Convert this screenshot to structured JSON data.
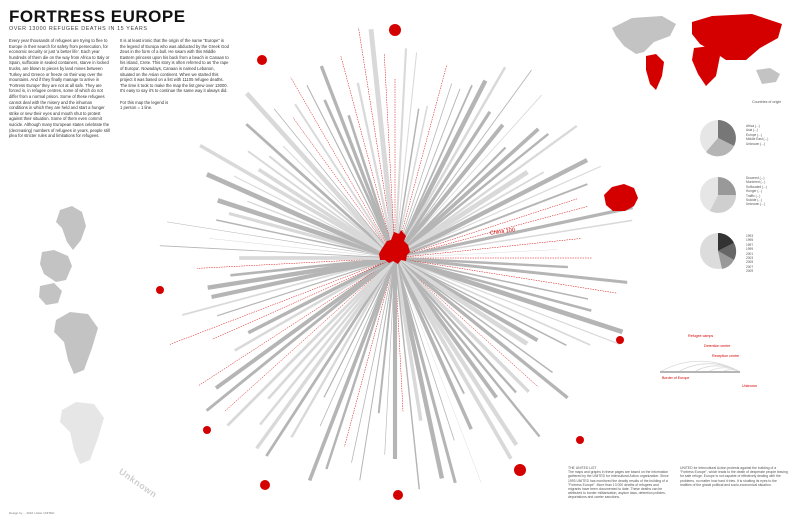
{
  "title": "FORTRESS EUROPE",
  "subtitle": "OVER 13000 REFUGEE DEATHS IN 15 YEARS",
  "intro_col1": "Every year thousands of refugees are trying to flee to Europe in their search for safety from persecution, for economic security or just 'a better life'. Each year hundreds of them die on the way from Africa to Italy or Spain, suffocate in sealed containers, starve in locked trucks, are blown to pieces by land mines between Turkey and Greece or freeze on their way over the mountains. And if they finally manage to arrive in 'Fortress Europe' they are not at all safe. They are forced in, in refugee centres, some of which do not differ from a normal prison. Some of these refugees cannot deal with the misery and the inhuman conditions in which they are held and start a hunger strike or sew their eyes and mouth shut to protest against their situation. Some of them even commit suicide. Although many European states celebrate the (decreasing) numbers of refugees in years, people still plea for stricter rules and limitations for refugees.",
  "intro_col2": "It is at least ironic that the origin of the name \"Europe\" is the legend of Europa who was abducted by the Greek God Zeus in the form of a bull. He swam with this Middle Eastern princess upon his back from a beach in Canaan to his island, Crete. This story is often referred to as 'the rape of Europa'. Nowadays, Canaan is named Lebanon, situated on the Asian continent. When we started this project it was based on a list with 11105 refugee deaths. The time it took to make the map the list grew over 13000. It's easy to say it's to continue the same way it always did.\n\nFor this map the legend is\n1 person = 1 line.",
  "world_caption": "Countries of origin",
  "pie_legends": [
    "Africa (...)\nAsia (...)\nEurope (...)\nMiddle East (...)\nUnknown (...)",
    "Drowned (...)\nMurdered (...)\nSuffocated (...)\nHunger (...)\nTraffic (...)\nSuicide (...)\nUnknown (...)",
    "1993\n1995\n1997\n1999\n2001\n2003\n2005\n2007\n2009"
  ],
  "arc_labels": [
    "Border of Europe",
    "Refugee camps",
    "Detention centre",
    "Reception centre",
    "Unknown"
  ],
  "china_label": "China  100",
  "unknown_label": "Unknown",
  "footer_left": "THE UNITED LIST\nThe maps and graphs in these pages are based on the information gathered by the UNITED for Intercultural Action organization. Since 1993 UNITED has monitored the deadly results of the building of a \"Fortress Europe\". More than 13 000 deaths of refugees and migrants have been documented to date. These deaths can be attributed to border militarisation, asylum laws, detention policies, deportations and carrier sanctions.",
  "footer_right": "UNITED for Intercultural Action protests against the building of a \"Fortress Europe\", which leads to the death of desperate people leaving for safe refuge. Europe is not capable of effectively dealing with the problems, no matter how hard it tries. It is shutting its eyes to the realities of the global political and socio-economical situation.",
  "credit": "Design by ... 2010 / data: UNITED",
  "colors": {
    "accent": "#d40000",
    "ray_dark": "#b5b5b5",
    "ray_light": "#d9d9d9",
    "map_grey": "#c3c3c3"
  }
}
